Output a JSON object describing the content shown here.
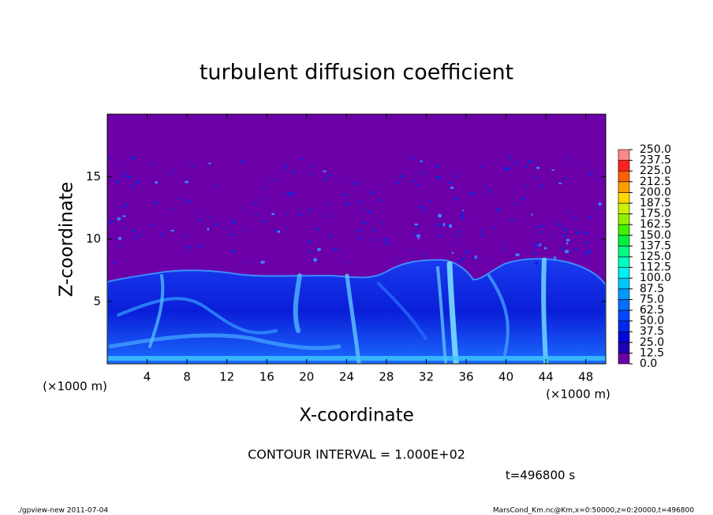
{
  "chart_data": {
    "type": "contour",
    "title": "turbulent diffusion coefficient",
    "xlabel": "X-coordinate",
    "ylabel": "Z-coordinate",
    "x_unit_label": "(×1000 m)",
    "y_unit_label": "(×1000 m)",
    "xlim": [
      0,
      50
    ],
    "xticks": [
      4,
      8,
      12,
      16,
      20,
      24,
      28,
      32,
      36,
      40,
      44,
      48
    ],
    "ylim": [
      0,
      20
    ],
    "yticks": [
      5,
      10,
      15
    ],
    "background_color": "#6c00a8",
    "colorbar": {
      "clim": [
        0,
        250
      ],
      "ticks": [
        {
          "value": 0,
          "label": "0.0"
        },
        {
          "value": 12.5,
          "label": "12.5"
        },
        {
          "value": 25,
          "label": "25.0"
        },
        {
          "value": 37.5,
          "label": "37.5"
        },
        {
          "value": 50,
          "label": "50.0"
        },
        {
          "value": 62.5,
          "label": "62.5"
        },
        {
          "value": 75,
          "label": "75.0"
        },
        {
          "value": 87.5,
          "label": "87.5"
        },
        {
          "value": 100,
          "label": "100.0"
        },
        {
          "value": 112.5,
          "label": "112.5"
        },
        {
          "value": 125,
          "label": "125.0"
        },
        {
          "value": 137.5,
          "label": "137.5"
        },
        {
          "value": 150,
          "label": "150.0"
        },
        {
          "value": 162.5,
          "label": "162.5"
        },
        {
          "value": 175,
          "label": "175.0"
        },
        {
          "value": 187.5,
          "label": "187.5"
        },
        {
          "value": 200,
          "label": "200.0"
        },
        {
          "value": 212.5,
          "label": "212.5"
        },
        {
          "value": 225,
          "label": "225.0"
        },
        {
          "value": 237.5,
          "label": "237.5"
        },
        {
          "value": 250,
          "label": "250.0"
        }
      ],
      "colors": [
        "#6c00a8",
        "#2000b8",
        "#0008d8",
        "#0028f0",
        "#0048ff",
        "#0070ff",
        "#0098ff",
        "#00c8ff",
        "#00f0f0",
        "#00ffc0",
        "#00ff80",
        "#00f040",
        "#40f000",
        "#90f000",
        "#d0f000",
        "#ffd800",
        "#ffa000",
        "#ff6000",
        "#ff2020",
        "#ff8888"
      ]
    },
    "contour_interval_text": "CONTOUR INTERVAL = 1.000E+02",
    "time_text": "t=496800 s",
    "footer_left": "./gpview-new  2011-07-04",
    "footer_right": "MarsCond_Km.nc@Km,x=0:50000,z=0:20000,t=496800"
  }
}
